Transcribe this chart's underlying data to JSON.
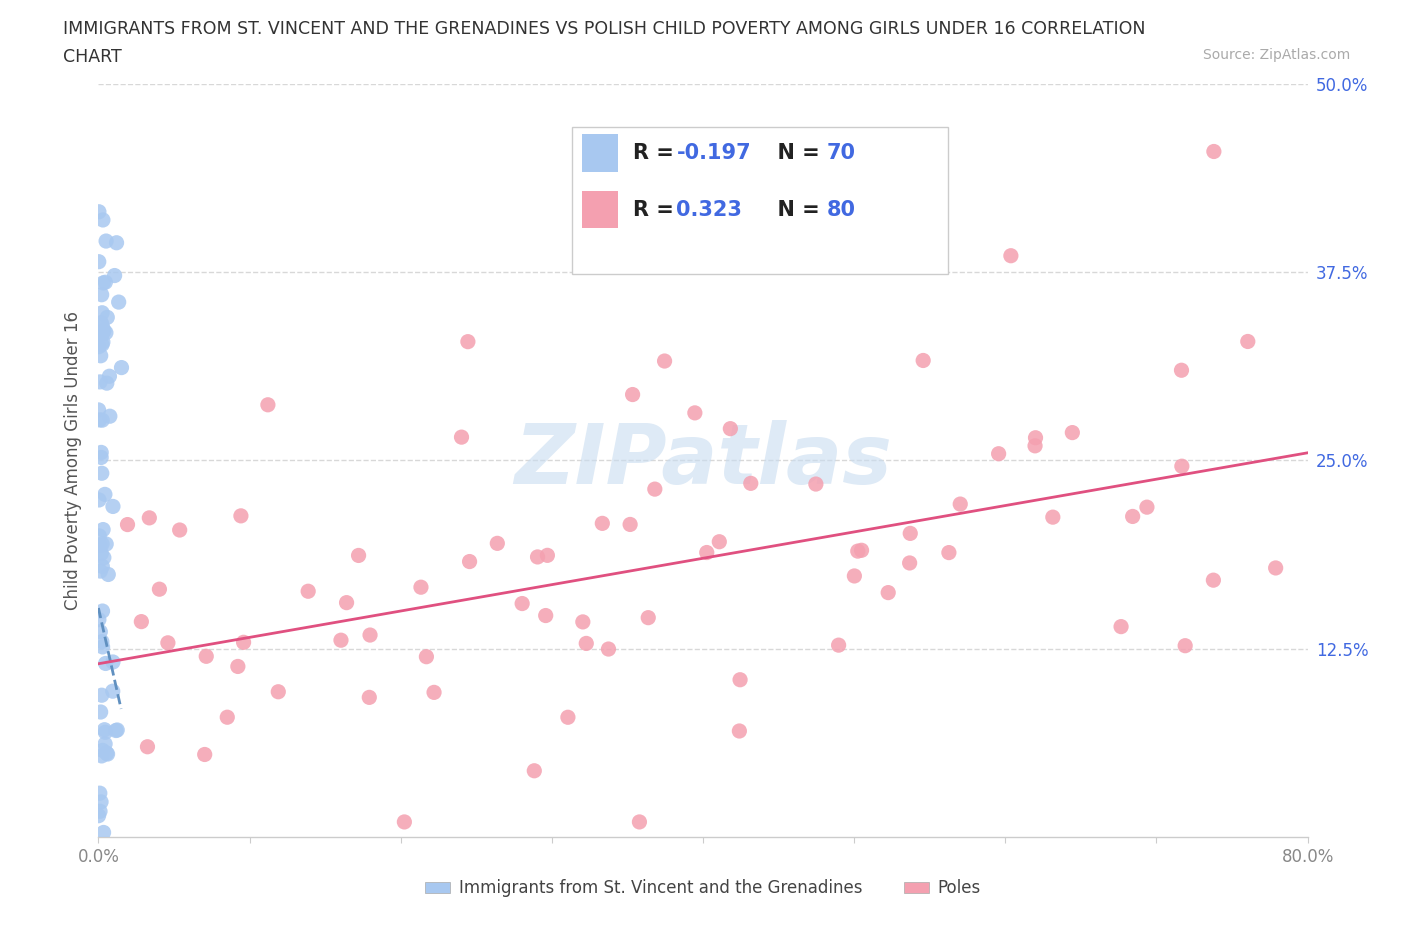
{
  "title_line1": "IMMIGRANTS FROM ST. VINCENT AND THE GRENADINES VS POLISH CHILD POVERTY AMONG GIRLS UNDER 16 CORRELATION",
  "title_line2": "CHART",
  "source_text": "Source: ZipAtlas.com",
  "ylabel": "Child Poverty Among Girls Under 16",
  "watermark_text": "ZIPatlas",
  "xlim": [
    0.0,
    0.8
  ],
  "ylim": [
    0.0,
    0.5
  ],
  "series1_color": "#a8c8f0",
  "series1_line_color": "#6090c0",
  "series1_R": -0.197,
  "series1_N": 70,
  "series1_label": "Immigrants from St. Vincent and the Grenadines",
  "series2_color": "#f4a0b0",
  "series2_line_color": "#e05080",
  "series2_R": 0.323,
  "series2_N": 80,
  "series2_label": "Poles",
  "r_color": "#4169e1",
  "grid_color": "#d8d8d8",
  "bg_color": "#ffffff",
  "tick_color": "#888888",
  "ytick_vals": [
    0.0,
    0.125,
    0.25,
    0.375,
    0.5
  ],
  "right_ytick_labels": [
    "",
    "12.5%",
    "25.0%",
    "37.5%",
    "50.0%"
  ],
  "xtick_vals": [
    0.0,
    0.1,
    0.2,
    0.3,
    0.4,
    0.5,
    0.6,
    0.7,
    0.8
  ],
  "xtick_labels": [
    "0.0%",
    "",
    "",
    "",
    "",
    "",
    "",
    "",
    "80.0%"
  ],
  "line1_x0": 0.0,
  "line1_y0": 0.152,
  "line1_x1": 0.015,
  "line1_y1": 0.085,
  "line2_x0": 0.0,
  "line2_y0": 0.115,
  "line2_x1": 0.8,
  "line2_y1": 0.255
}
